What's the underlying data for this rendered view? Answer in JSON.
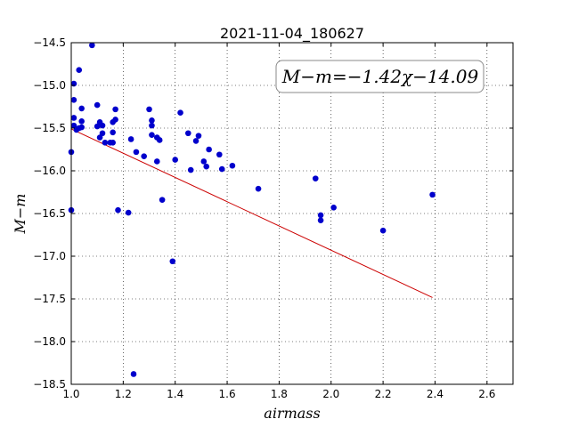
{
  "chart_data": {
    "type": "scatter",
    "title": "2021-11-04_180627",
    "xlabel": "airmass",
    "ylabel": "M−m",
    "xlim": [
      1.0,
      2.7
    ],
    "ylim": [
      -18.5,
      -14.5
    ],
    "y_inverted": true,
    "grid": true,
    "xticks": [
      1.0,
      1.2,
      1.4,
      1.6,
      1.8,
      2.0,
      2.2,
      2.4,
      2.6
    ],
    "xtick_labels": [
      "1.0",
      "1.2",
      "1.4",
      "1.6",
      "1.8",
      "2.0",
      "2.2",
      "2.4",
      "2.6"
    ],
    "yticks": [
      -14.5,
      -15.0,
      -15.5,
      -16.0,
      -16.5,
      -17.0,
      -17.5,
      -18.0,
      -18.5
    ],
    "ytick_labels": [
      "−14.5",
      "−15.0",
      "−15.5",
      "−16.0",
      "−16.5",
      "−17.0",
      "−17.5",
      "−18.0",
      "−18.5"
    ],
    "annotation": "M−m=−1.42χ−14.09",
    "fit": {
      "slope": -1.42,
      "intercept": -14.09,
      "x_range": [
        1.0,
        2.39
      ],
      "color": "#cc0000"
    },
    "point_color": "#0000cc",
    "points": [
      {
        "x": 1.0,
        "y": -15.78
      },
      {
        "x": 1.0,
        "y": -16.46
      },
      {
        "x": 1.01,
        "y": -14.98
      },
      {
        "x": 1.01,
        "y": -15.17
      },
      {
        "x": 1.01,
        "y": -15.38
      },
      {
        "x": 1.01,
        "y": -15.47
      },
      {
        "x": 1.02,
        "y": -15.52
      },
      {
        "x": 1.03,
        "y": -14.82
      },
      {
        "x": 1.03,
        "y": -15.5
      },
      {
        "x": 1.04,
        "y": -15.27
      },
      {
        "x": 1.04,
        "y": -15.42
      },
      {
        "x": 1.04,
        "y": -15.49
      },
      {
        "x": 1.08,
        "y": -14.53
      },
      {
        "x": 1.1,
        "y": -15.23
      },
      {
        "x": 1.1,
        "y": -15.48
      },
      {
        "x": 1.11,
        "y": -15.43
      },
      {
        "x": 1.11,
        "y": -15.61
      },
      {
        "x": 1.12,
        "y": -15.47
      },
      {
        "x": 1.12,
        "y": -15.56
      },
      {
        "x": 1.13,
        "y": -15.67
      },
      {
        "x": 1.15,
        "y": -15.67
      },
      {
        "x": 1.16,
        "y": -15.43
      },
      {
        "x": 1.16,
        "y": -15.55
      },
      {
        "x": 1.16,
        "y": -15.67
      },
      {
        "x": 1.17,
        "y": -15.28
      },
      {
        "x": 1.17,
        "y": -15.4
      },
      {
        "x": 1.18,
        "y": -16.46
      },
      {
        "x": 1.22,
        "y": -16.49
      },
      {
        "x": 1.23,
        "y": -15.63
      },
      {
        "x": 1.24,
        "y": -18.38
      },
      {
        "x": 1.25,
        "y": -15.78
      },
      {
        "x": 1.28,
        "y": -15.83
      },
      {
        "x": 1.3,
        "y": -15.28
      },
      {
        "x": 1.31,
        "y": -15.41
      },
      {
        "x": 1.31,
        "y": -15.47
      },
      {
        "x": 1.31,
        "y": -15.58
      },
      {
        "x": 1.33,
        "y": -15.61
      },
      {
        "x": 1.33,
        "y": -15.89
      },
      {
        "x": 1.34,
        "y": -15.64
      },
      {
        "x": 1.35,
        "y": -16.34
      },
      {
        "x": 1.39,
        "y": -17.06
      },
      {
        "x": 1.4,
        "y": -15.87
      },
      {
        "x": 1.42,
        "y": -15.32
      },
      {
        "x": 1.45,
        "y": -15.56
      },
      {
        "x": 1.46,
        "y": -15.99
      },
      {
        "x": 1.48,
        "y": -15.65
      },
      {
        "x": 1.49,
        "y": -15.59
      },
      {
        "x": 1.51,
        "y": -15.89
      },
      {
        "x": 1.52,
        "y": -15.95
      },
      {
        "x": 1.53,
        "y": -15.75
      },
      {
        "x": 1.57,
        "y": -15.81
      },
      {
        "x": 1.58,
        "y": -15.98
      },
      {
        "x": 1.62,
        "y": -15.94
      },
      {
        "x": 1.72,
        "y": -16.21
      },
      {
        "x": 1.94,
        "y": -16.09
      },
      {
        "x": 1.96,
        "y": -16.52
      },
      {
        "x": 1.96,
        "y": -16.58
      },
      {
        "x": 2.01,
        "y": -16.43
      },
      {
        "x": 2.2,
        "y": -16.7
      },
      {
        "x": 2.39,
        "y": -16.28
      }
    ]
  }
}
